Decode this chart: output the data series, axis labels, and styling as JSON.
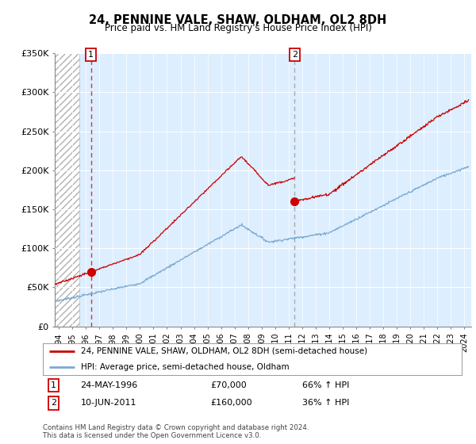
{
  "title": "24, PENNINE VALE, SHAW, OLDHAM, OL2 8DH",
  "subtitle": "Price paid vs. HM Land Registry's House Price Index (HPI)",
  "ylabel_ticks": [
    "£0",
    "£50K",
    "£100K",
    "£150K",
    "£200K",
    "£250K",
    "£300K",
    "£350K"
  ],
  "ytick_values": [
    0,
    50000,
    100000,
    150000,
    200000,
    250000,
    300000,
    350000
  ],
  "ylim": [
    0,
    350000
  ],
  "xlim_start": 1993.7,
  "xlim_end": 2024.5,
  "red_line_color": "#cc0000",
  "blue_line_color": "#7aaad0",
  "vline1_x": 1996.38,
  "vline2_x": 2011.44,
  "marker1_x": 1996.38,
  "marker1_y": 70000,
  "marker2_x": 2011.44,
  "marker2_y": 160000,
  "legend_line1": "24, PENNINE VALE, SHAW, OLDHAM, OL2 8DH (semi-detached house)",
  "legend_line2": "HPI: Average price, semi-detached house, Oldham",
  "table_row1": [
    "1",
    "24-MAY-1996",
    "£70,000",
    "66% ↑ HPI"
  ],
  "table_row2": [
    "2",
    "10-JUN-2011",
    "£160,000",
    "36% ↑ HPI"
  ],
  "footnote": "Contains HM Land Registry data © Crown copyright and database right 2024.\nThis data is licensed under the Open Government Licence v3.0.",
  "bg_plot_color": "#ddeeff",
  "hatch_end": 1995.5
}
